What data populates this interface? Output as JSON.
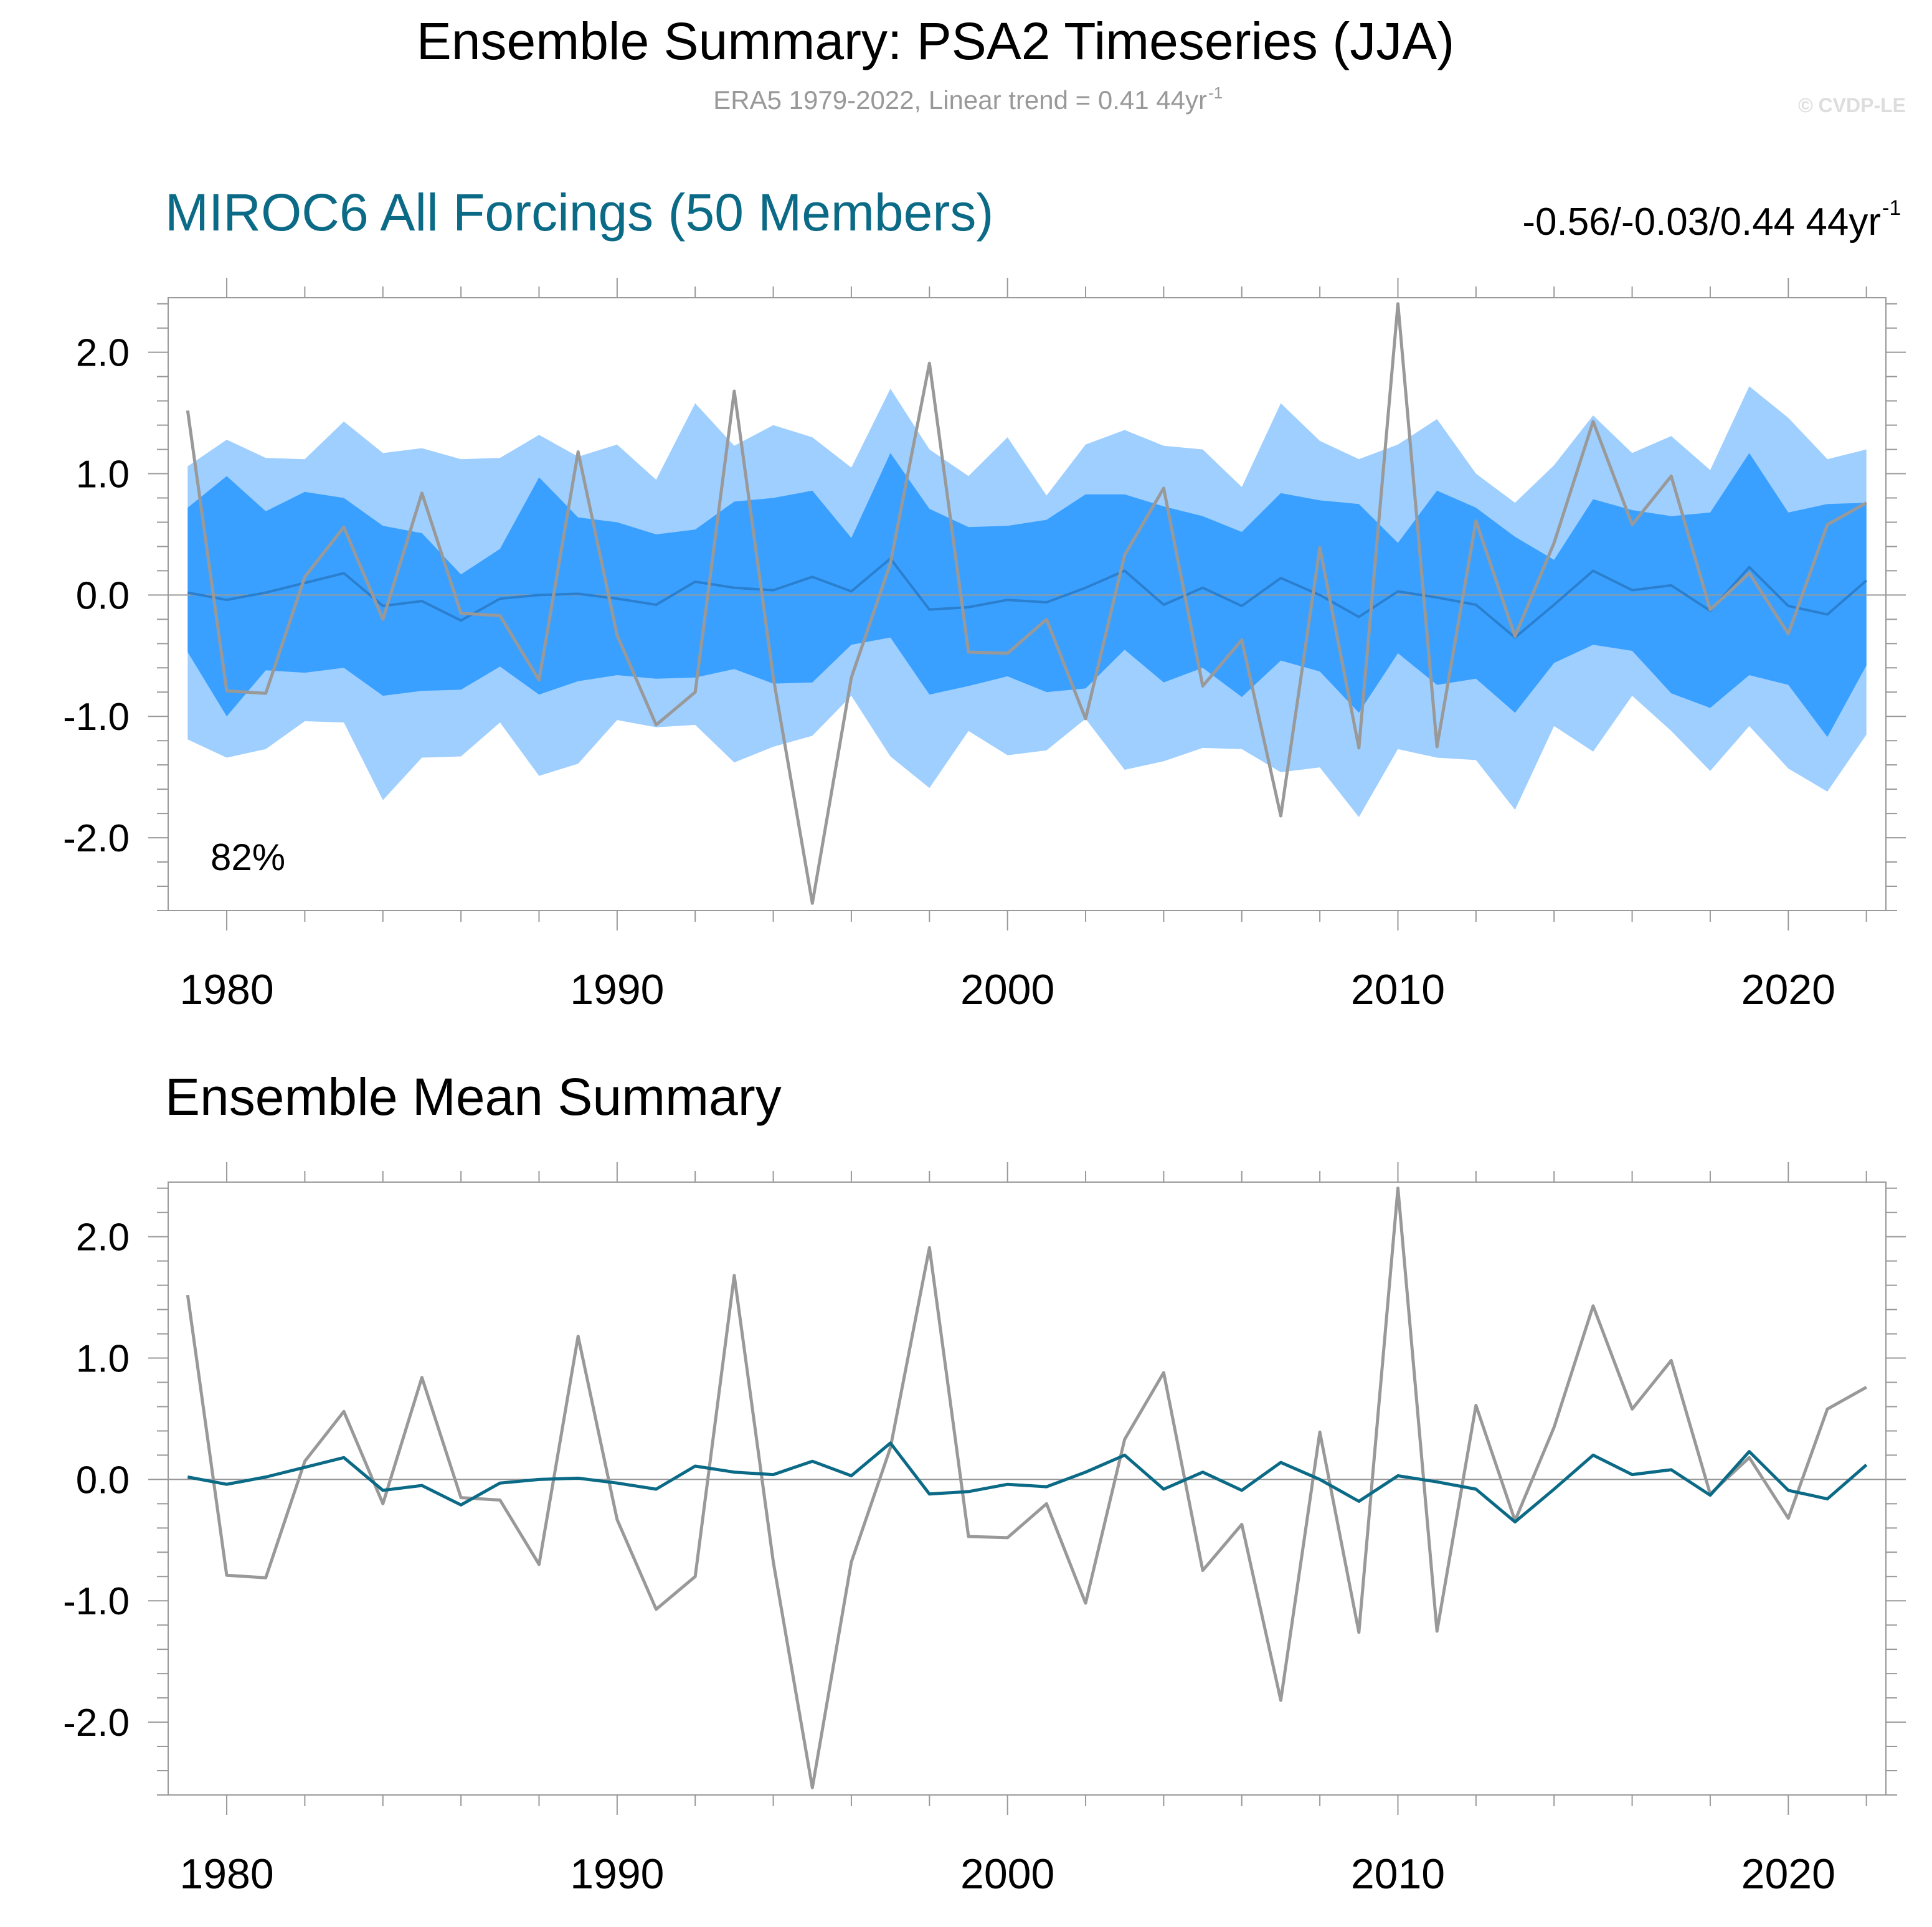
{
  "header": {
    "title": "Ensemble Summary: PSA2 Timeseries (JJA)",
    "subtitle": "ERA5 1979-2022, Linear trend = 0.41 44yr",
    "subtitle_sup": "-1",
    "copyright": "© CVDP-LE"
  },
  "colors": {
    "outer_band": "#9fcfff",
    "inner_band": "#3aa0ff",
    "ensemble_median_line": "#2a7fcf",
    "ensemble_mean_line": "#0b6a86",
    "observed_line": "#999999",
    "title_blue": "#0b6a86"
  },
  "chart_data": [
    {
      "type": "area",
      "title": "MIROC6 All Forcings (50 Members)",
      "trend_label": "-0.56/-0.03/0.44 44yr",
      "trend_sup": "-1",
      "annotation": "82%",
      "xlim": [
        1978.5,
        2022.5
      ],
      "ylim": [
        -2.6,
        2.45
      ],
      "x_ticks": [
        1980,
        1990,
        2000,
        2010,
        2020
      ],
      "y_ticks": [
        2.0,
        1.0,
        0.0,
        -1.0,
        -2.0
      ],
      "y_tick_labels": [
        "2.0",
        "1.0",
        "0.0",
        "-1.0",
        "-2.0"
      ],
      "grid": false,
      "zero_line": true,
      "x": [
        1979,
        1980,
        1981,
        1982,
        1983,
        1984,
        1985,
        1986,
        1987,
        1988,
        1989,
        1990,
        1991,
        1992,
        1993,
        1994,
        1995,
        1996,
        1997,
        1998,
        1999,
        2000,
        2001,
        2002,
        2003,
        2004,
        2005,
        2006,
        2007,
        2008,
        2009,
        2010,
        2011,
        2012,
        2013,
        2014,
        2015,
        2016,
        2017,
        2018,
        2019,
        2020,
        2021,
        2022
      ],
      "series": [
        {
          "role": "outer_upper",
          "values": [
            1.06,
            1.28,
            1.13,
            1.12,
            1.43,
            1.17,
            1.21,
            1.12,
            1.13,
            1.32,
            1.14,
            1.24,
            0.95,
            1.58,
            1.23,
            1.4,
            1.3,
            1.05,
            1.7,
            1.2,
            0.98,
            1.3,
            0.82,
            1.24,
            1.36,
            1.23,
            1.2,
            0.89,
            1.58,
            1.27,
            1.12,
            1.24,
            1.45,
            1.0,
            0.76,
            1.07,
            1.48,
            1.17,
            1.31,
            1.03,
            1.72,
            1.46,
            1.12,
            1.2
          ]
        },
        {
          "role": "inner_upper",
          "values": [
            0.72,
            0.98,
            0.69,
            0.85,
            0.8,
            0.57,
            0.51,
            0.17,
            0.38,
            0.97,
            0.64,
            0.6,
            0.5,
            0.54,
            0.77,
            0.8,
            0.86,
            0.47,
            1.17,
            0.71,
            0.56,
            0.57,
            0.62,
            0.83,
            0.83,
            0.73,
            0.65,
            0.52,
            0.84,
            0.78,
            0.75,
            0.43,
            0.86,
            0.72,
            0.48,
            0.29,
            0.79,
            0.7,
            0.65,
            0.68,
            1.17,
            0.68,
            0.75,
            0.76
          ]
        },
        {
          "role": "median",
          "values": [
            0.02,
            -0.04,
            0.02,
            0.1,
            0.18,
            -0.09,
            -0.05,
            -0.21,
            -0.03,
            0.0,
            0.01,
            -0.03,
            -0.08,
            0.11,
            0.06,
            0.04,
            0.15,
            0.03,
            0.3,
            -0.12,
            -0.1,
            -0.04,
            -0.06,
            0.06,
            0.2,
            -0.08,
            0.06,
            -0.09,
            0.14,
            0.0,
            -0.18,
            0.03,
            -0.02,
            -0.08,
            -0.35,
            -0.08,
            0.2,
            0.04,
            0.08,
            -0.13,
            0.23,
            -0.09,
            -0.16,
            0.12
          ]
        },
        {
          "role": "inner_lower",
          "values": [
            -0.47,
            -1.0,
            -0.62,
            -0.64,
            -0.6,
            -0.83,
            -0.79,
            -0.78,
            -0.59,
            -0.82,
            -0.71,
            -0.66,
            -0.69,
            -0.68,
            -0.61,
            -0.73,
            -0.72,
            -0.41,
            -0.35,
            -0.82,
            -0.75,
            -0.67,
            -0.8,
            -0.77,
            -0.45,
            -0.72,
            -0.6,
            -0.84,
            -0.54,
            -0.63,
            -0.97,
            -0.48,
            -0.74,
            -0.69,
            -0.97,
            -0.56,
            -0.41,
            -0.46,
            -0.81,
            -0.93,
            -0.66,
            -0.74,
            -1.17,
            -0.58
          ]
        },
        {
          "role": "outer_lower",
          "values": [
            -1.19,
            -1.34,
            -1.27,
            -1.04,
            -1.05,
            -1.69,
            -1.34,
            -1.33,
            -1.05,
            -1.49,
            -1.39,
            -1.03,
            -1.09,
            -1.07,
            -1.38,
            -1.25,
            -1.16,
            -0.83,
            -1.33,
            -1.59,
            -1.12,
            -1.32,
            -1.28,
            -1.02,
            -1.44,
            -1.37,
            -1.26,
            -1.27,
            -1.46,
            -1.42,
            -1.83,
            -1.27,
            -1.34,
            -1.36,
            -1.77,
            -1.08,
            -1.29,
            -0.83,
            -1.12,
            -1.45,
            -1.08,
            -1.43,
            -1.62,
            -1.15
          ]
        },
        {
          "role": "observed",
          "values": [
            1.52,
            -0.79,
            -0.81,
            0.15,
            0.56,
            -0.2,
            0.84,
            -0.15,
            -0.17,
            -0.7,
            1.18,
            -0.33,
            -1.07,
            -0.8,
            1.68,
            -0.68,
            -2.54,
            -0.68,
            0.26,
            1.91,
            -0.47,
            -0.48,
            -0.2,
            -1.02,
            0.33,
            0.88,
            -0.75,
            -0.37,
            -1.82,
            0.39,
            -1.26,
            2.4,
            -1.25,
            0.61,
            -0.34,
            0.43,
            1.43,
            0.58,
            0.98,
            -0.12,
            0.18,
            -0.32,
            0.58,
            0.76
          ]
        }
      ]
    },
    {
      "type": "line",
      "title": "Ensemble Mean Summary",
      "xlim": [
        1978.5,
        2022.5
      ],
      "ylim": [
        -2.6,
        2.45
      ],
      "x_ticks": [
        1980,
        1990,
        2000,
        2010,
        2020
      ],
      "y_ticks": [
        2.0,
        1.0,
        0.0,
        -1.0,
        -2.0
      ],
      "y_tick_labels": [
        "2.0",
        "1.0",
        "0.0",
        "-1.0",
        "-2.0"
      ],
      "grid": false,
      "zero_line": true,
      "x": [
        1979,
        1980,
        1981,
        1982,
        1983,
        1984,
        1985,
        1986,
        1987,
        1988,
        1989,
        1990,
        1991,
        1992,
        1993,
        1994,
        1995,
        1996,
        1997,
        1998,
        1999,
        2000,
        2001,
        2002,
        2003,
        2004,
        2005,
        2006,
        2007,
        2008,
        2009,
        2010,
        2011,
        2012,
        2013,
        2014,
        2015,
        2016,
        2017,
        2018,
        2019,
        2020,
        2021,
        2022
      ],
      "series": [
        {
          "role": "observed",
          "values": [
            1.52,
            -0.79,
            -0.81,
            0.15,
            0.56,
            -0.2,
            0.84,
            -0.15,
            -0.17,
            -0.7,
            1.18,
            -0.33,
            -1.07,
            -0.8,
            1.68,
            -0.68,
            -2.54,
            -0.68,
            0.26,
            1.91,
            -0.47,
            -0.48,
            -0.2,
            -1.02,
            0.33,
            0.88,
            -0.75,
            -0.37,
            -1.82,
            0.39,
            -1.26,
            2.4,
            -1.25,
            0.61,
            -0.34,
            0.43,
            1.43,
            0.58,
            0.98,
            -0.12,
            0.18,
            -0.32,
            0.58,
            0.76
          ]
        },
        {
          "role": "mean",
          "values": [
            0.02,
            -0.04,
            0.02,
            0.1,
            0.18,
            -0.09,
            -0.05,
            -0.21,
            -0.03,
            0.0,
            0.01,
            -0.03,
            -0.08,
            0.11,
            0.06,
            0.04,
            0.15,
            0.03,
            0.3,
            -0.12,
            -0.1,
            -0.04,
            -0.06,
            0.06,
            0.2,
            -0.08,
            0.06,
            -0.09,
            0.14,
            0.0,
            -0.18,
            0.03,
            -0.02,
            -0.08,
            -0.35,
            -0.08,
            0.2,
            0.04,
            0.08,
            -0.13,
            0.23,
            -0.09,
            -0.16,
            0.12
          ]
        }
      ]
    }
  ]
}
